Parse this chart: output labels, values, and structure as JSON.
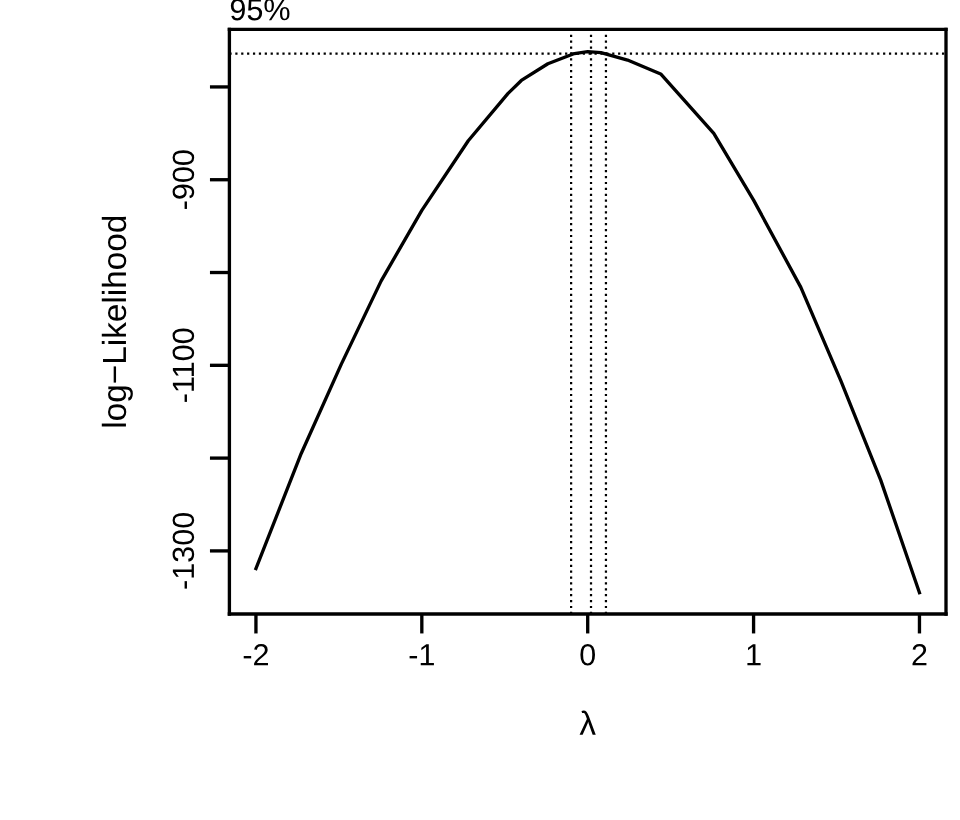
{
  "chart_data": {
    "type": "line",
    "xlabel": "λ",
    "ylabel": "log−Likelihood",
    "x": [
      -2,
      -1.727,
      -1.486,
      -1.245,
      -1.0,
      -0.72,
      -0.48,
      -0.4,
      -0.24,
      -0.08,
      0.0,
      0.08,
      0.24,
      0.44,
      0.76,
      1.0,
      1.285,
      1.527,
      1.767,
      2.0
    ],
    "series": [
      {
        "color": "#000000",
        "values": [
          -1319,
          -1195,
          -1099,
          -1009,
          -933,
          -858,
          -807,
          -793,
          -775,
          -764,
          -762,
          -763,
          -771,
          -786,
          -850,
          -922,
          -1016,
          -1117,
          -1224,
          -1345
        ]
      }
    ],
    "annotations": [
      "95%"
    ],
    "xlim": [
      -2.16,
      2.16
    ],
    "ylim": [
      -1368,
      -738
    ],
    "xticks": [
      -2,
      -1,
      0,
      1,
      2
    ],
    "yticks": [
      {
        "value": -800,
        "label": null
      },
      -900,
      {
        "value": -1000,
        "label": null
      },
      -1100,
      {
        "value": -1200,
        "label": null
      },
      -1300
    ],
    "ref_lines": [
      {
        "axis": "y",
        "value": -764,
        "line_style": "dotted",
        "color": "#000000"
      },
      {
        "axis": "x",
        "value": -0.1,
        "line_style": "dotted",
        "color": "#000000"
      },
      {
        "axis": "x",
        "value": 0.02,
        "line_style": "dotted",
        "color": "#000000"
      },
      {
        "axis": "x",
        "value": 0.11,
        "line_style": "dotted",
        "color": "#000000"
      }
    ],
    "grid": false,
    "legend": false,
    "marker": "none",
    "line_style": "solid"
  }
}
